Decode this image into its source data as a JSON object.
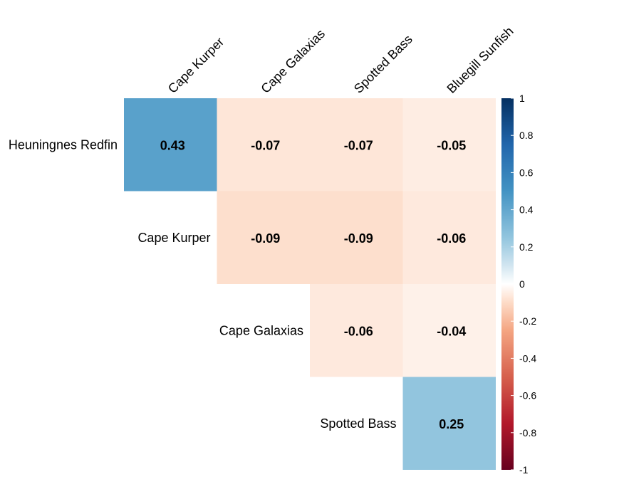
{
  "chart_data": {
    "type": "heatmap",
    "title": "",
    "columns": [
      "Cape Kurper",
      "Cape Galaxias",
      "Spotted Bass",
      "Bluegill Sunfish"
    ],
    "rows": [
      "Heuningnes Redfin",
      "Cape Kurper",
      "Cape Galaxias",
      "Spotted Bass"
    ],
    "values": [
      [
        0.43,
        -0.07,
        -0.07,
        -0.05
      ],
      [
        null,
        -0.09,
        -0.09,
        -0.06
      ],
      [
        null,
        null,
        -0.06,
        -0.04
      ],
      [
        null,
        null,
        null,
        0.25
      ]
    ],
    "value_labels": [
      [
        "0.43",
        "-0.07",
        "-0.07",
        "-0.05"
      ],
      [
        null,
        "-0.09",
        "-0.09",
        "-0.06"
      ],
      [
        null,
        null,
        "-0.06",
        "-0.04"
      ],
      [
        null,
        null,
        null,
        "0.25"
      ]
    ],
    "layout": "upper-triangle",
    "color_scale": {
      "min": -1,
      "max": 1,
      "stops": [
        {
          "value": -1,
          "color": "#67001F"
        },
        {
          "value": -0.75,
          "color": "#B2182B"
        },
        {
          "value": -0.5,
          "color": "#D6604D"
        },
        {
          "value": -0.25,
          "color": "#F4A582"
        },
        {
          "value": -0.1,
          "color": "#FDDBC7"
        },
        {
          "value": 0,
          "color": "#FFFFFF"
        },
        {
          "value": 0.1,
          "color": "#D1E5F0"
        },
        {
          "value": 0.25,
          "color": "#92C5DE"
        },
        {
          "value": 0.5,
          "color": "#4393C3"
        },
        {
          "value": 0.75,
          "color": "#2166AC"
        },
        {
          "value": 1,
          "color": "#053061"
        }
      ],
      "ticks": [
        1,
        0.8,
        0.6,
        0.4,
        0.2,
        0,
        -0.2,
        -0.4,
        -0.6,
        -0.8,
        -1
      ],
      "tick_labels": [
        "1",
        "0.8",
        "0.6",
        "0.4",
        "0.2",
        "0",
        "-0.2",
        "-0.4",
        "-0.6",
        "-0.8",
        "-1"
      ]
    },
    "legend": "right"
  }
}
